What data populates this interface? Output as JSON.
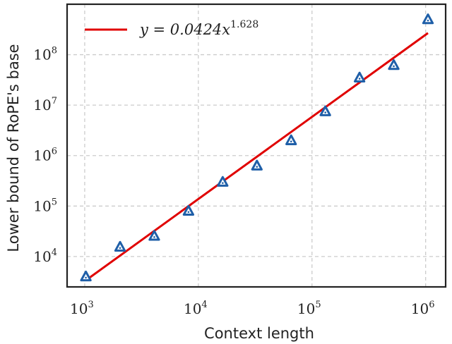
{
  "chart_data": {
    "type": "scatter",
    "title": "",
    "xlabel": "Context length",
    "ylabel": "Lower bound of RoPE's base",
    "xscale": "log",
    "yscale": "log",
    "xlim": [
      700,
      1500000
    ],
    "ylim": [
      2500,
      1000000000
    ],
    "grid": true,
    "x_ticks": [
      {
        "value": 1000,
        "base": "10",
        "exp": "3"
      },
      {
        "value": 10000,
        "base": "10",
        "exp": "4"
      },
      {
        "value": 100000,
        "base": "10",
        "exp": "5"
      },
      {
        "value": 1000000,
        "base": "10",
        "exp": "6"
      }
    ],
    "y_ticks": [
      {
        "value": 10000,
        "base": "10",
        "exp": "4"
      },
      {
        "value": 100000,
        "base": "10",
        "exp": "5"
      },
      {
        "value": 1000000,
        "base": "10",
        "exp": "6"
      },
      {
        "value": 10000000,
        "base": "10",
        "exp": "7"
      },
      {
        "value": 100000000,
        "base": "10",
        "exp": "8"
      }
    ],
    "points": {
      "marker": "triangle",
      "color": "#1f5fa8",
      "x": [
        1024,
        2048,
        4096,
        8192,
        16384,
        32768,
        65536,
        131072,
        262144,
        524288,
        1048576
      ],
      "y": [
        4000,
        15500,
        25500,
        80000,
        300000,
        630000,
        2000000,
        7500000,
        35000000,
        62000000,
        500000000
      ]
    },
    "fit_line": {
      "color": "#e00000",
      "coefficient": 0.0424,
      "exponent": 1.628,
      "x_range": [
        1024,
        1048576
      ]
    },
    "legend": {
      "position": "top-left",
      "label_prefix": "y = 0.0424x",
      "label_exp": "1.628"
    }
  }
}
